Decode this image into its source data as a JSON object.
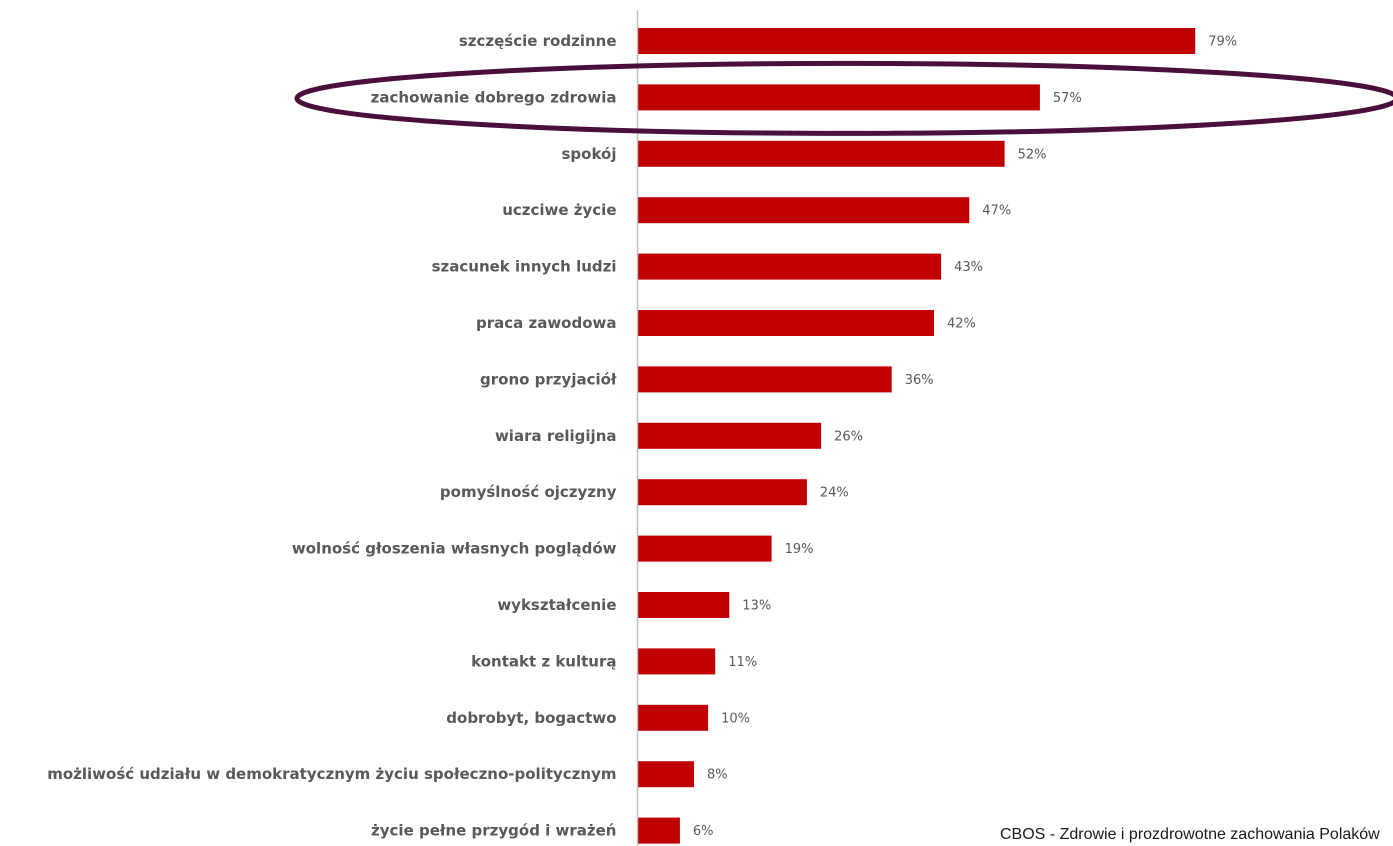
{
  "chart_data": {
    "type": "bar",
    "orientation": "horizontal",
    "categories": [
      "szczęście rodzinne",
      "zachowanie dobrego zdrowia",
      "spokój",
      "uczciwe życie",
      "szacunek innych ludzi",
      "praca zawodowa",
      "grono przyjaciół",
      "wiara religijna",
      "pomyślność ojczyzny",
      "wolność głoszenia własnych poglądów",
      "wykształcenie",
      "kontakt z kulturą",
      "dobrobyt, bogactwo",
      "możliwość udziału w demokratycznym życiu społeczno-politycznym",
      "życie pełne przygód i wrażeń"
    ],
    "values": [
      79,
      57,
      52,
      47,
      43,
      42,
      36,
      26,
      24,
      19,
      13,
      11,
      10,
      8,
      6
    ],
    "value_labels": [
      "79%",
      "57%",
      "52%",
      "47%",
      "43%",
      "42%",
      "36%",
      "26%",
      "24%",
      "19%",
      "13%",
      "11%",
      "10%",
      "8%",
      "6%"
    ],
    "unit": "%",
    "xlim": [
      0,
      100
    ],
    "grid": false,
    "legend": "none",
    "highlighted_category": "zachowanie dobrego zdrowia",
    "bar_color": "#c00000",
    "axis_color": "#bfbfbf",
    "highlight_color": "#4a0f3c",
    "label_color": "#595959"
  },
  "source_note": "CBOS - Zdrowie i prozdrowotne zachowania Polaków"
}
